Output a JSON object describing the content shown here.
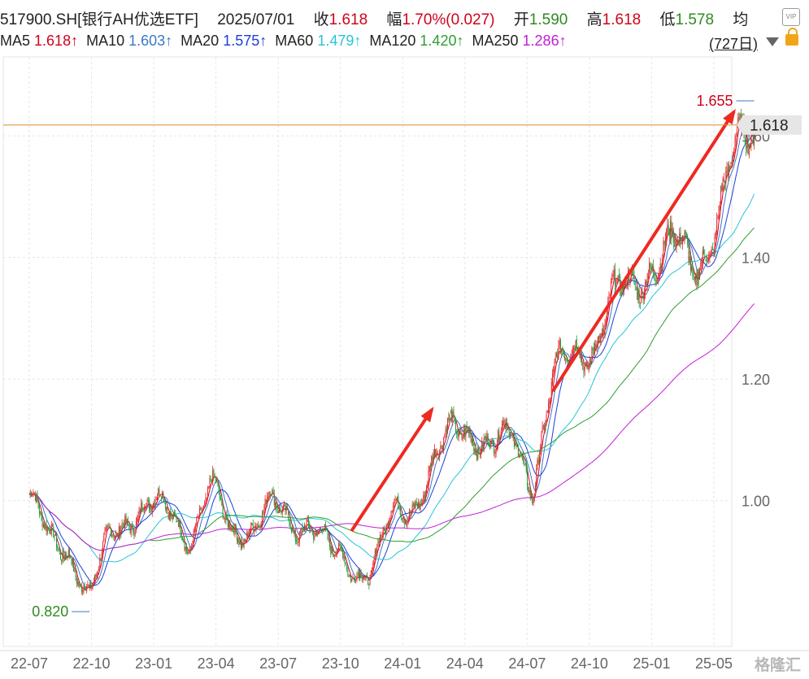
{
  "header": {
    "symbol": "517900.SH[银行AH优选ETF]",
    "date": "2025/07/01",
    "close_label": "收",
    "close_value": "1.618",
    "change_label": "幅",
    "change_value": "1.70%(0.027)",
    "open_label": "开",
    "open_value": "1.590",
    "high_label": "高",
    "high_value": "1.618",
    "low_label": "低",
    "low_value": "1.578",
    "avg_label": "均"
  },
  "ma_legend": [
    {
      "name": "MA5",
      "value": "1.618↑",
      "color": "#d0021b"
    },
    {
      "name": "MA10",
      "value": "1.603↑",
      "color": "#3a78c8"
    },
    {
      "name": "MA20",
      "value": "1.575↑",
      "color": "#1a3fd8"
    },
    {
      "name": "MA60",
      "value": "1.479↑",
      "color": "#27c4d8"
    },
    {
      "name": "MA120",
      "value": "1.420↑",
      "color": "#2e9e2e"
    },
    {
      "name": "MA250",
      "value": "1.286↑",
      "color": "#c21ed6"
    }
  ],
  "period_label": "(727日)",
  "watermark": "格隆汇",
  "chart_data": {
    "type": "candlestick",
    "x_ticks": [
      "22-07",
      "22-10",
      "23-01",
      "23-04",
      "23-07",
      "23-10",
      "24-01",
      "24-04",
      "24-07",
      "24-10",
      "25-01",
      "25-05"
    ],
    "y_ticks": [
      "1.00",
      "1.20",
      "1.40",
      "1.60"
    ],
    "ylim": [
      0.76,
      1.73
    ],
    "current_price": 1.618,
    "current_price_label": "1.618",
    "annotations": {
      "max": {
        "value": 1.655,
        "label": "1.655",
        "date": "25-07"
      },
      "min": {
        "value": 0.82,
        "label": "0.820",
        "date": "22-10"
      }
    },
    "arrows": [
      {
        "from": [
          "23-11",
          0.95
        ],
        "to": [
          "24-03",
          1.15
        ]
      },
      {
        "from": [
          "24-09",
          1.18
        ],
        "to": [
          "25-06",
          1.64
        ]
      }
    ],
    "price_path": [
      [
        "22-07",
        1.01
      ],
      [
        "22-08",
        0.93
      ],
      [
        "22-09",
        0.92
      ],
      [
        "22-10",
        0.84
      ],
      [
        "22-11",
        0.94
      ],
      [
        "22-12",
        0.98
      ],
      [
        "23-01",
        0.99
      ],
      [
        "23-02",
        0.98
      ],
      [
        "23-03",
        0.94
      ],
      [
        "23-04",
        1.02
      ],
      [
        "23-05",
        0.95
      ],
      [
        "23-06",
        0.96
      ],
      [
        "23-07",
        0.99
      ],
      [
        "23-08",
        0.96
      ],
      [
        "23-09",
        0.97
      ],
      [
        "23-10",
        0.91
      ],
      [
        "23-11",
        0.89
      ],
      [
        "23-12",
        0.89
      ],
      [
        "24-01",
        0.97
      ],
      [
        "24-02",
        0.99
      ],
      [
        "24-03",
        1.06
      ],
      [
        "24-04",
        1.11
      ],
      [
        "24-05",
        1.12
      ],
      [
        "24-06",
        1.09
      ],
      [
        "24-07",
        1.1
      ],
      [
        "24-08",
        1.03
      ],
      [
        "24-09",
        1.2
      ],
      [
        "24-10",
        1.24
      ],
      [
        "24-11",
        1.26
      ],
      [
        "24-12",
        1.33
      ],
      [
        "25-01",
        1.35
      ],
      [
        "25-02",
        1.4
      ],
      [
        "25-03",
        1.42
      ],
      [
        "25-04",
        1.38
      ],
      [
        "25-05",
        1.45
      ],
      [
        "25-06",
        1.56
      ],
      [
        "25-07",
        1.618
      ]
    ],
    "ma_end_values": {
      "MA5": 1.618,
      "MA10": 1.603,
      "MA20": 1.575,
      "MA60": 1.479,
      "MA120": 1.42,
      "MA250": 1.286
    }
  }
}
